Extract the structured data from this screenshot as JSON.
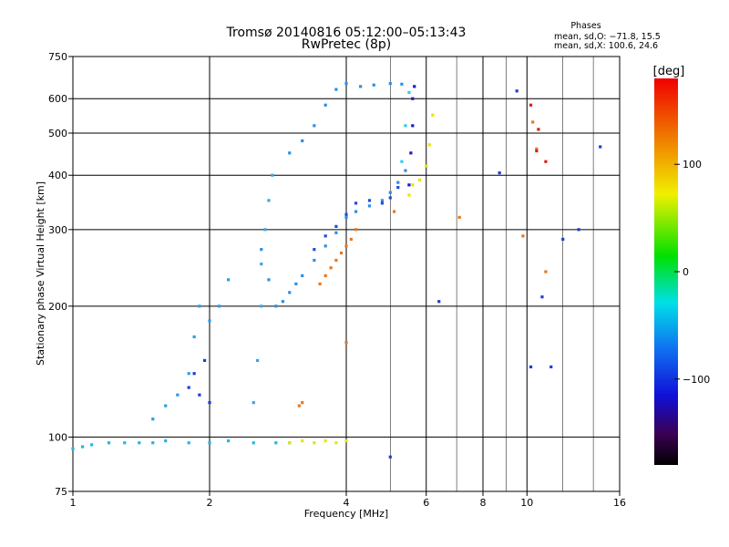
{
  "chart_data": {
    "type": "scatter",
    "title": "Tromsø 20140816 05:12:00–05:13:43",
    "subtitle": "RwPretec (8p)",
    "xlabel": "Frequency [MHz]",
    "ylabel": "Stationary phase Virtual Height [km]",
    "x_scale": "log",
    "y_scale": "log",
    "xlim": [
      1,
      16
    ],
    "ylim": [
      75,
      750
    ],
    "x_ticks": [
      1,
      2,
      4,
      6,
      8,
      10,
      16
    ],
    "x_ticks_labels": [
      "1",
      "2",
      "4",
      "6",
      "8",
      "10",
      "16"
    ],
    "x_grid_major": [
      2,
      4,
      6,
      8,
      10
    ],
    "x_grid_minor": [
      5,
      7,
      9,
      12,
      14
    ],
    "y_ticks": [
      75,
      100,
      200,
      300,
      400,
      500,
      600,
      750
    ],
    "y_ticks_labels": [
      "75",
      "100",
      "200",
      "300",
      "400",
      "500",
      "600",
      "750"
    ],
    "y_grid": [
      100,
      200,
      300,
      400,
      500,
      600
    ],
    "grid": true,
    "stats": {
      "heading": "Phases",
      "line_o": "mean, sd,O: −71.8, 15.5",
      "line_x": "mean, sd,X: 100.6, 24.6"
    },
    "colorbar": {
      "label": "[deg]",
      "range": [
        -180,
        180
      ],
      "ticks": [
        100,
        0,
        -100
      ],
      "ticks_labels": [
        "100",
        "0",
        "−100"
      ]
    },
    "traces": [
      {
        "name": "ground-band",
        "color": "#1fb8e6",
        "x": [
          1.0,
          1.05,
          1.1,
          1.2,
          1.3,
          1.4,
          1.5,
          1.6,
          1.8,
          2.0,
          2.2,
          2.5,
          2.8,
          3.0
        ],
        "y": [
          94,
          95,
          96,
          97,
          97,
          97,
          97,
          98,
          97,
          97,
          98,
          97,
          97,
          97
        ]
      },
      {
        "name": "low-layer-yellow",
        "color": "#e6e600",
        "x": [
          3.0,
          3.2,
          3.4,
          3.6,
          3.8,
          4.0
        ],
        "y": [
          97,
          98,
          97,
          98,
          97,
          98
        ]
      },
      {
        "name": "E-rise",
        "color": "#2a9ee8",
        "x": [
          1.5,
          1.6,
          1.7,
          1.8,
          1.85,
          1.9,
          2.0,
          2.1,
          2.2
        ],
        "y": [
          110,
          118,
          125,
          140,
          170,
          200,
          185,
          200,
          230
        ]
      },
      {
        "name": "E-rise-blue",
        "color": "#1f3cdc",
        "x": [
          1.8,
          1.85,
          1.9,
          1.95,
          2.0
        ],
        "y": [
          130,
          140,
          125,
          150,
          120
        ]
      },
      {
        "name": "spread-2.5",
        "color": "#3aa6e8",
        "x": [
          2.5,
          2.55,
          2.6,
          2.6,
          2.65,
          2.7,
          2.75
        ],
        "y": [
          120,
          150,
          200,
          250,
          300,
          350,
          400
        ]
      },
      {
        "name": "F1-trace",
        "color": "#2f8fe0",
        "x": [
          2.6,
          2.7,
          2.8,
          2.9,
          3.0,
          3.1,
          3.2,
          3.4,
          3.6,
          3.8,
          4.0,
          4.2,
          4.5,
          4.8,
          5.0,
          5.2,
          5.4
        ],
        "y": [
          270,
          230,
          200,
          205,
          215,
          225,
          235,
          255,
          275,
          295,
          320,
          330,
          340,
          350,
          365,
          385,
          410
        ]
      },
      {
        "name": "F1-upper-blue",
        "color": "#1d4fd8",
        "x": [
          3.4,
          3.6,
          3.8,
          4.0,
          4.2,
          4.5,
          4.8,
          5.0,
          5.2
        ],
        "y": [
          270,
          290,
          305,
          325,
          345,
          350,
          345,
          355,
          375
        ]
      },
      {
        "name": "X-orange",
        "color": "#e8781e",
        "x": [
          3.5,
          3.6,
          3.7,
          3.8,
          3.9,
          4.0,
          4.1,
          4.2
        ],
        "y": [
          225,
          235,
          245,
          255,
          265,
          275,
          285,
          300
        ]
      },
      {
        "name": "F2-top",
        "color": "#2a90e8",
        "x": [
          3.0,
          3.2,
          3.4,
          3.6,
          3.8,
          4.0,
          4.3,
          4.6,
          5.0,
          5.3
        ],
        "y": [
          450,
          480,
          520,
          580,
          630,
          650,
          640,
          645,
          650,
          648
        ]
      },
      {
        "name": "F2-cusp-navy",
        "color": "#1a1ac8",
        "x": [
          5.5,
          5.55,
          5.6,
          5.6,
          5.65
        ],
        "y": [
          380,
          450,
          520,
          600,
          640
        ]
      },
      {
        "name": "F2-yellow",
        "color": "#e6e600",
        "x": [
          5.5,
          5.6,
          5.8,
          6.0,
          6.1,
          6.2
        ],
        "y": [
          360,
          380,
          390,
          420,
          470,
          550
        ]
      },
      {
        "name": "F2-cyan",
        "color": "#2ccfe8",
        "x": [
          5.3,
          5.4,
          5.5
        ],
        "y": [
          430,
          520,
          620
        ]
      },
      {
        "name": "scatter-orange",
        "color": "#e8781e",
        "x": [
          3.15,
          3.2,
          4.0,
          5.1,
          7.1,
          9.8,
          10.3,
          10.5,
          11.0
        ],
        "y": [
          118,
          120,
          165,
          330,
          320,
          290,
          530,
          460,
          240
        ]
      },
      {
        "name": "scatter-red",
        "color": "#d82018",
        "x": [
          10.2,
          10.5,
          11.0,
          10.6
        ],
        "y": [
          580,
          455,
          430,
          510
        ]
      },
      {
        "name": "scatter-blue",
        "color": "#1f3cdc",
        "x": [
          6.4,
          8.7,
          9.5,
          10.2,
          10.8,
          11.3,
          12.0,
          13.0,
          14.5,
          5.0
        ],
        "y": [
          205,
          405,
          625,
          145,
          210,
          145,
          285,
          300,
          465,
          90
        ]
      }
    ]
  }
}
